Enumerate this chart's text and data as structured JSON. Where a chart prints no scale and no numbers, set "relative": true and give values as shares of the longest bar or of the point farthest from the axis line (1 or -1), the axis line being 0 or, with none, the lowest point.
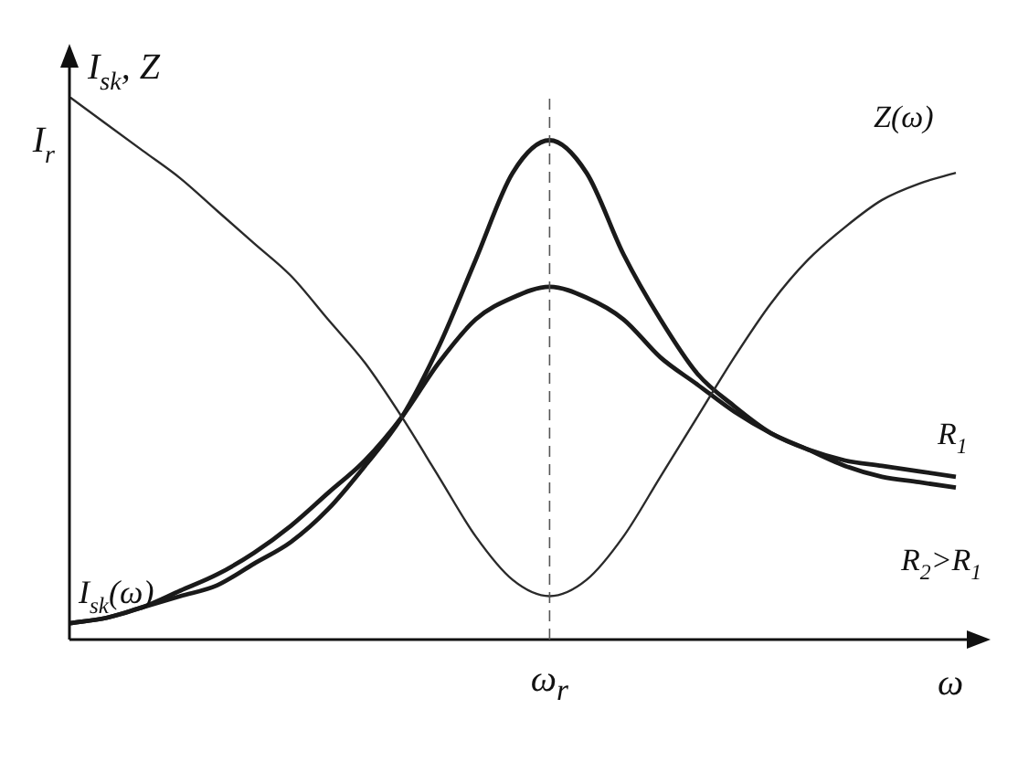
{
  "chart_data": {
    "type": "line",
    "relative": true,
    "xlabel": "ω",
    "ylabel": "I$_{sk}$, Z",
    "categories": [
      null,
      null,
      null,
      null,
      null,
      null,
      null,
      null,
      null,
      null,
      null,
      null,
      null,
      null,
      null,
      null,
      null,
      null,
      null,
      null,
      null,
      null,
      null,
      null,
      null
    ],
    "series": [
      {
        "name": "Z(ω)",
        "color": "#2a2a2a",
        "values": [
          1,
          0.95,
          0.9,
          0.85,
          0.79,
          0.73,
          0.67,
          0.59,
          0.51,
          0.41,
          0.3,
          0.19,
          0.11,
          0.08,
          0.11,
          0.19,
          0.3,
          0.41,
          0.52,
          0.62,
          0.7,
          0.76,
          0.81,
          0.84,
          0.86
        ]
      },
      {
        "name": "R$_{1}$",
        "color": "#1a1a1a",
        "values": [
          0.03,
          0.04,
          0.06,
          0.08,
          0.1,
          0.14,
          0.18,
          0.24,
          0.32,
          0.41,
          0.54,
          0.7,
          0.86,
          0.92,
          0.86,
          0.71,
          0.59,
          0.49,
          0.43,
          0.38,
          0.35,
          0.33,
          0.32,
          0.31,
          0.3
        ]
      },
      {
        "name": "R$_{2}$>R$_{1}$",
        "color": "#1a1a1a",
        "values": [
          0.03,
          0.04,
          0.06,
          0.09,
          0.12,
          0.16,
          0.21,
          0.27,
          0.33,
          0.41,
          0.51,
          0.59,
          0.63,
          0.65,
          0.63,
          0.59,
          0.52,
          0.47,
          0.42,
          0.38,
          0.35,
          0.32,
          0.3,
          0.29,
          0.28
        ]
      }
    ],
    "ref_lines": [
      {
        "axis": "x",
        "label": "ω$_{r}$",
        "line_style": "dashed"
      }
    ],
    "annotations": [
      "I$_{r}$",
      "I$_{sk}$(ω)"
    ],
    "grid": false,
    "legend": false,
    "marker": "none",
    "line_style": "solid"
  }
}
